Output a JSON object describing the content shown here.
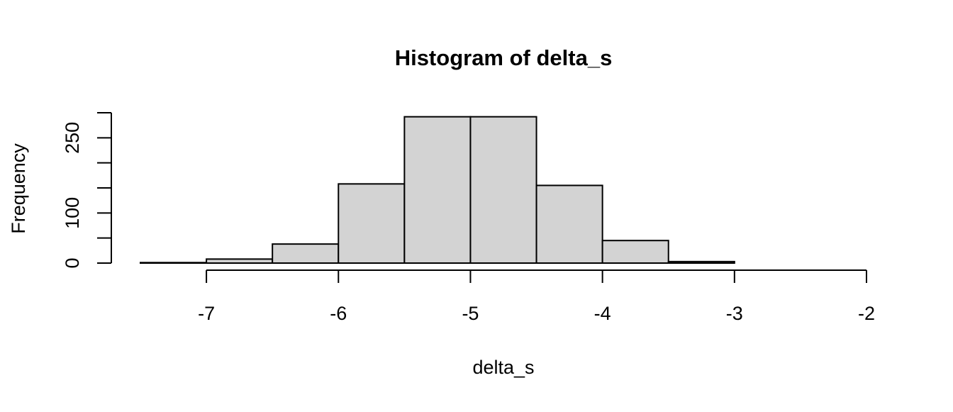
{
  "chart_data": {
    "type": "bar",
    "title": "Histogram of delta_s",
    "xlabel": "delta_s",
    "ylabel": "Frequency",
    "bins": [
      {
        "start": -7.5,
        "end": -7.0,
        "count": 1
      },
      {
        "start": -7.0,
        "end": -6.5,
        "count": 8
      },
      {
        "start": -6.5,
        "end": -6.0,
        "count": 38
      },
      {
        "start": -6.0,
        "end": -5.5,
        "count": 158
      },
      {
        "start": -5.5,
        "end": -5.0,
        "count": 292
      },
      {
        "start": -5.0,
        "end": -4.5,
        "count": 292
      },
      {
        "start": -4.5,
        "end": -4.0,
        "count": 155
      },
      {
        "start": -4.0,
        "end": -3.5,
        "count": 45
      },
      {
        "start": -3.5,
        "end": -3.0,
        "count": 3
      },
      {
        "start": -3.0,
        "end": -2.5,
        "count": 0
      },
      {
        "start": -2.5,
        "end": -2.0,
        "count": 0
      }
    ],
    "x_ticks": [
      -7,
      -6,
      -5,
      -4,
      -3,
      -2
    ],
    "x_tick_labels": [
      "-7",
      "-6",
      "-5",
      "-4",
      "-3",
      "-2"
    ],
    "y_ticks": [
      0,
      50,
      100,
      150,
      200,
      250,
      300
    ],
    "y_tick_labels": [
      "0",
      "",
      "100",
      "",
      "",
      "250",
      ""
    ],
    "xlim": [
      -7.5,
      -2
    ],
    "ylim": [
      0,
      300
    ],
    "grid": false,
    "bar_fill": "#d3d3d3",
    "bar_stroke": "#000000"
  }
}
